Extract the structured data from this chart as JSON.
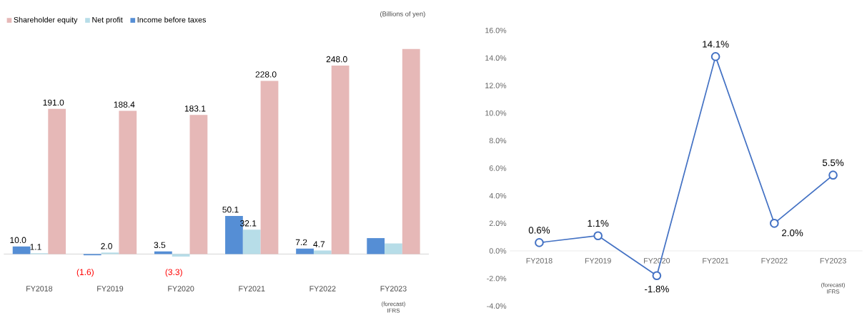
{
  "chart_data": [
    {
      "type": "bar",
      "categories": [
        "FY2018",
        "FY2019",
        "FY2020",
        "FY2021",
        "FY2022",
        "FY2023"
      ],
      "series": [
        {
          "name": "Income before taxes",
          "color": "#558ed5",
          "values": [
            10.0,
            -1.6,
            3.5,
            50.1,
            7.2,
            21
          ],
          "value_labels": [
            "10.0",
            "(1.6)",
            "3.5",
            "50.1",
            "7.2",
            null
          ]
        },
        {
          "name": "Net profit",
          "color": "#b7dde8",
          "values": [
            1.1,
            2.0,
            -3.3,
            32.1,
            4.7,
            14
          ],
          "value_labels": [
            "1.1",
            "2.0",
            "(3.3)",
            "32.1",
            "4.7",
            null
          ]
        },
        {
          "name": "Shareholder equity",
          "color": "#e6b8b7",
          "values": [
            191.0,
            188.4,
            183.1,
            228.0,
            248.0,
            270
          ],
          "value_labels": [
            "191.0",
            "188.4",
            "183.1",
            "228.0",
            "248.0",
            null
          ]
        }
      ],
      "annotations": [
        "(Billions of yen)",
        "(forecast) IFRS"
      ],
      "legend": "top left"
    },
    {
      "type": "line",
      "categories": [
        "FY2018",
        "FY2019",
        "FY2020",
        "FY2021",
        "FY2022",
        "FY2023"
      ],
      "series": [
        {
          "color": "#4472c4",
          "values": [
            0.6,
            1.1,
            -1.8,
            14.1,
            2.0,
            5.5
          ],
          "value_labels": [
            "0.6%",
            "1.1%",
            "-1.8%",
            "14.1%",
            "2.0%",
            "5.5%"
          ]
        }
      ],
      "ylim": [
        -4,
        16
      ],
      "yticks": [
        {
          "value": -4,
          "label": "-4.0%"
        },
        {
          "value": -2,
          "label": "-2.0%"
        },
        {
          "value": 0,
          "label": "0.0%"
        },
        {
          "value": 2,
          "label": "2.0%"
        },
        {
          "value": 4,
          "label": "4.0%"
        },
        {
          "value": 6,
          "label": "6.0%"
        },
        {
          "value": 8,
          "label": "8.0%"
        },
        {
          "value": 10,
          "label": "10.0%"
        },
        {
          "value": 12,
          "label": "12.0%"
        },
        {
          "value": 14,
          "label": "14.0%"
        },
        {
          "value": 16,
          "label": "16.0%"
        }
      ],
      "annotations": [
        "(forecast) IFRS"
      ],
      "marker": "circle",
      "line_style": "solid"
    }
  ]
}
